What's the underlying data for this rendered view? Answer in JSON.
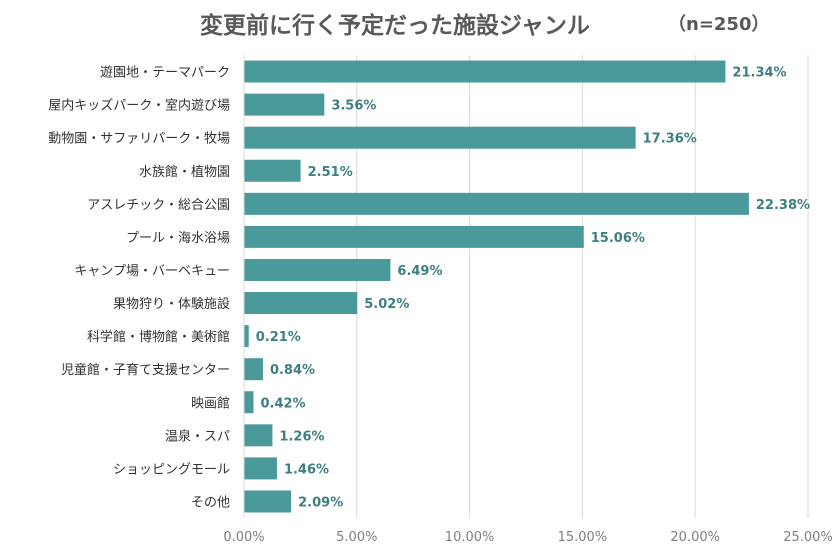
{
  "chart_data": {
    "type": "bar",
    "orientation": "horizontal",
    "title": "変更前に行く予定だった施設ジャンル",
    "subtitle": "（n=250）",
    "categories": [
      "遊園地・テーマパーク",
      "屋内キッズパーク・室内遊び場",
      "動物園・サファリパーク・牧場",
      "水族館・植物園",
      "アスレチック・総合公園",
      "プール・海水浴場",
      "キャンプ場・バーベキュー",
      "果物狩り・体験施設",
      "科学館・博物館・美術館",
      "児童館・子育て支援センター",
      "映画館",
      "温泉・スパ",
      "ショッピングモール",
      "その他"
    ],
    "values": [
      21.34,
      3.56,
      17.36,
      2.51,
      22.38,
      15.06,
      6.49,
      5.02,
      0.21,
      0.84,
      0.42,
      1.26,
      1.46,
      2.09
    ],
    "data_labels": [
      "21.34%",
      "3.56%",
      "17.36%",
      "2.51%",
      "22.38%",
      "15.06%",
      "6.49%",
      "5.02%",
      "0.21%",
      "0.84%",
      "0.42%",
      "1.26%",
      "1.46%",
      "2.09%"
    ],
    "xlim": [
      0,
      25
    ],
    "x_ticks": [
      "0.00%",
      "5.00%",
      "10.00%",
      "15.00%",
      "20.00%",
      "25.00%"
    ],
    "grid": true,
    "legend": "none",
    "colors": {
      "bar": "#4a9a9c",
      "label": "#3d7f82",
      "category_text": "#333333",
      "tick_text": "#7f7f7f",
      "grid": "#d9d9d9"
    }
  }
}
